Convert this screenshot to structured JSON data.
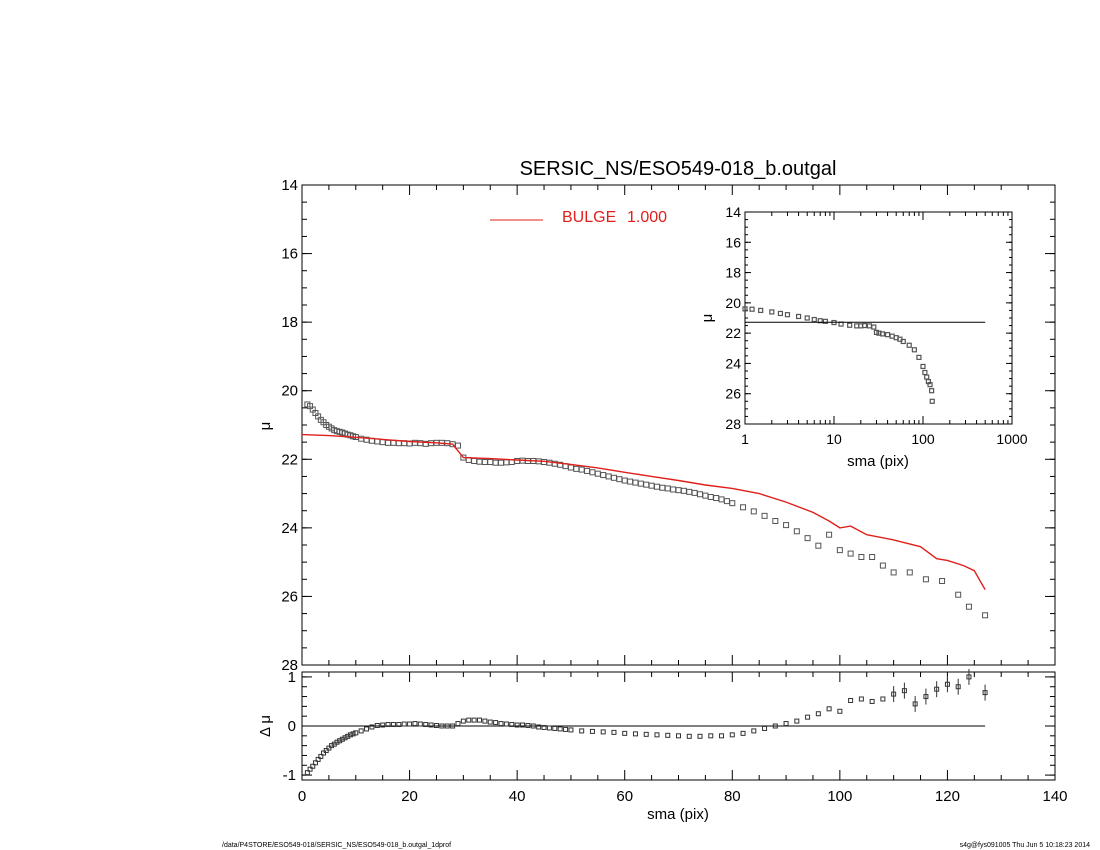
{
  "chart_data": [
    {
      "type": "scatter",
      "panel": "main",
      "title": "SERSIC_NS/ESO549-018_b.outgal",
      "xlabel": "",
      "ylabel": "μ",
      "xlim": [
        0,
        140
      ],
      "ylim": [
        28,
        14
      ],
      "yticks": [
        "14",
        "16",
        "18",
        "20",
        "22",
        "24",
        "26",
        "28"
      ],
      "y_inverted": true,
      "legend": {
        "placement": "top-center",
        "label": "BULGE",
        "value": "1.000",
        "color": "#e0201b"
      },
      "series": [
        {
          "kind": "points",
          "marker": "open-square",
          "color": "#555555",
          "x": [
            1,
            1.5,
            2,
            2.5,
            3,
            3.5,
            4,
            4.5,
            5,
            5.5,
            6,
            6.5,
            7,
            7.5,
            8,
            8.5,
            9,
            9.5,
            10,
            11,
            12,
            13,
            14,
            15,
            16,
            17,
            18,
            19,
            20,
            21,
            22,
            23,
            24,
            25,
            26,
            27,
            28,
            29,
            30,
            31,
            32,
            33,
            34,
            35,
            36,
            37,
            38,
            39,
            40,
            41,
            42,
            43,
            44,
            45,
            46,
            47,
            48,
            49,
            50,
            51,
            52,
            53,
            54,
            55,
            56,
            57,
            58,
            59,
            60,
            61,
            62,
            63,
            64,
            65,
            66,
            67,
            68,
            69,
            70,
            71,
            72,
            73,
            74,
            75,
            76,
            77,
            78,
            79,
            80,
            82,
            84,
            86,
            88,
            90,
            92,
            94,
            96,
            98,
            100,
            102,
            104,
            106,
            108,
            110,
            113,
            116,
            119,
            122,
            124,
            127
          ],
          "y": [
            20.4,
            20.45,
            20.55,
            20.65,
            20.75,
            20.85,
            20.92,
            21,
            21.05,
            21.1,
            21.15,
            21.18,
            21.2,
            21.22,
            21.25,
            21.28,
            21.3,
            21.33,
            21.35,
            21.4,
            21.43,
            21.46,
            21.48,
            21.5,
            21.52,
            21.52,
            21.53,
            21.53,
            21.54,
            21.52,
            21.53,
            21.55,
            21.53,
            21.52,
            21.52,
            21.53,
            21.56,
            21.6,
            21.95,
            22.02,
            22.05,
            22.07,
            22.08,
            22.08,
            22.1,
            22.1,
            22.09,
            22.08,
            22.05,
            22.04,
            22.05,
            22.05,
            22.06,
            22.08,
            22.1,
            22.13,
            22.16,
            22.2,
            22.24,
            22.28,
            22.3,
            22.34,
            22.38,
            22.42,
            22.46,
            22.5,
            22.54,
            22.58,
            22.62,
            22.65,
            22.68,
            22.71,
            22.74,
            22.77,
            22.8,
            22.83,
            22.85,
            22.88,
            22.9,
            22.92,
            22.95,
            22.98,
            23.02,
            23.06,
            23.1,
            23.13,
            23.17,
            23.22,
            23.28,
            23.4,
            23.52,
            23.65,
            23.8,
            23.92,
            24.1,
            24.3,
            24.52,
            24.2,
            24.65,
            24.75,
            24.85,
            24.85,
            25.1,
            25.3,
            25.3,
            25.5,
            25.55,
            25.95,
            26.3,
            26.55
          ]
        },
        {
          "kind": "line",
          "name": "BULGE",
          "color": "#e0201b",
          "x": [
            0,
            5,
            10,
            15,
            20,
            25,
            28,
            30,
            35,
            40,
            45,
            50,
            55,
            60,
            65,
            70,
            75,
            80,
            85,
            90,
            95,
            98,
            100,
            102,
            105,
            110,
            115,
            118,
            120,
            123,
            125,
            127
          ],
          "y": [
            21.28,
            21.31,
            21.36,
            21.42,
            21.48,
            21.52,
            21.56,
            21.95,
            21.98,
            22.02,
            22.06,
            22.15,
            22.25,
            22.38,
            22.5,
            22.62,
            22.75,
            22.85,
            23.0,
            23.25,
            23.55,
            23.8,
            24.0,
            23.95,
            24.2,
            24.35,
            24.55,
            24.9,
            24.95,
            25.1,
            25.25,
            25.8
          ]
        }
      ]
    },
    {
      "type": "scatter",
      "panel": "inset",
      "title": "",
      "xlabel": "sma (pix)",
      "ylabel": "μ",
      "xscale": "log",
      "xlim": [
        1,
        1000
      ],
      "xticks": [
        "1",
        "10",
        "100",
        "1000"
      ],
      "ylim": [
        28,
        14
      ],
      "yticks": [
        "14",
        "16",
        "18",
        "20",
        "22",
        "24",
        "26",
        "28"
      ],
      "y_inverted": true,
      "series": [
        {
          "kind": "points",
          "marker": "open-square",
          "color": "#555555",
          "x": [
            1,
            1.2,
            1.5,
            2,
            2.5,
            3,
            4,
            5,
            6,
            7,
            8,
            10,
            12,
            15,
            18,
            20,
            22,
            25,
            28,
            30,
            32,
            35,
            40,
            45,
            50,
            55,
            60,
            70,
            80,
            90,
            100,
            105,
            110,
            115,
            120,
            125,
            127
          ],
          "y": [
            20.4,
            20.42,
            20.5,
            20.6,
            20.7,
            20.78,
            20.9,
            21.0,
            21.1,
            21.18,
            21.22,
            21.3,
            21.4,
            21.48,
            21.52,
            21.52,
            21.5,
            21.52,
            21.6,
            21.95,
            22.0,
            22.05,
            22.1,
            22.2,
            22.3,
            22.4,
            22.55,
            22.8,
            23.1,
            23.6,
            24.2,
            24.6,
            24.9,
            25.2,
            25.4,
            25.8,
            26.5
          ]
        },
        {
          "kind": "line",
          "color": "#000000",
          "x": [
            1,
            500
          ],
          "y": [
            21.28,
            21.28
          ]
        }
      ]
    },
    {
      "type": "scatter",
      "panel": "residual",
      "title": "",
      "xlabel": "sma (pix)",
      "ylabel": "Δ μ",
      "xlim": [
        0,
        140
      ],
      "xticks": [
        "0",
        "20",
        "40",
        "60",
        "80",
        "100",
        "120",
        "140"
      ],
      "ylim": [
        -1.1,
        1.1
      ],
      "yticks": [
        "-1",
        "0",
        "1"
      ],
      "series": [
        {
          "kind": "points",
          "marker": "open-square",
          "color": "#333333",
          "x": [
            1,
            1.5,
            2,
            2.5,
            3,
            3.5,
            4,
            4.5,
            5,
            5.5,
            6,
            6.5,
            7,
            7.5,
            8,
            8.5,
            9,
            9.5,
            10,
            11,
            12,
            13,
            14,
            15,
            16,
            17,
            18,
            19,
            20,
            21,
            22,
            23,
            24,
            25,
            26,
            27,
            28,
            29,
            30,
            31,
            32,
            33,
            34,
            35,
            36,
            37,
            38,
            39,
            40,
            41,
            42,
            43,
            44,
            45,
            46,
            47,
            48,
            49,
            50,
            52,
            54,
            56,
            58,
            60,
            62,
            64,
            66,
            68,
            70,
            72,
            74,
            76,
            78,
            80,
            82,
            84,
            86,
            88,
            90,
            92,
            94,
            96,
            98,
            100,
            102,
            104,
            106,
            108,
            110,
            112,
            114,
            116,
            118,
            120,
            122,
            124,
            127
          ],
          "y": [
            -0.95,
            -0.88,
            -0.82,
            -0.75,
            -0.68,
            -0.62,
            -0.55,
            -0.5,
            -0.45,
            -0.4,
            -0.37,
            -0.33,
            -0.3,
            -0.27,
            -0.24,
            -0.21,
            -0.18,
            -0.16,
            -0.14,
            -0.1,
            -0.06,
            -0.02,
            0.01,
            0.02,
            0.03,
            0.03,
            0.03,
            0.04,
            0.04,
            0.05,
            0.04,
            0.03,
            0.02,
            0.01,
            0.0,
            0.0,
            0.0,
            0.05,
            0.1,
            0.12,
            0.12,
            0.12,
            0.1,
            0.08,
            0.07,
            0.05,
            0.04,
            0.03,
            0.02,
            0.02,
            0.01,
            0.0,
            -0.02,
            -0.03,
            -0.04,
            -0.05,
            -0.06,
            -0.07,
            -0.08,
            -0.1,
            -0.11,
            -0.12,
            -0.13,
            -0.15,
            -0.16,
            -0.17,
            -0.18,
            -0.19,
            -0.2,
            -0.21,
            -0.21,
            -0.2,
            -0.2,
            -0.18,
            -0.15,
            -0.1,
            -0.05,
            0.0,
            0.05,
            0.1,
            0.18,
            0.25,
            0.35,
            0.3,
            0.52,
            0.55,
            0.5,
            0.55,
            0.65,
            0.72,
            0.45,
            0.6,
            0.75,
            0.85,
            0.8,
            1.0,
            0.68
          ]
        },
        {
          "kind": "line",
          "color": "#000000",
          "x": [
            0,
            127
          ],
          "y": [
            0,
            0
          ]
        }
      ]
    }
  ],
  "footer": {
    "left": "/data/P4STORE/ESO549-018/SERSIC_NS/ESO549-018_b.outgal_1dprof",
    "right": "s4g@fys091005  Thu Jun  5 10:18:23 2014"
  }
}
